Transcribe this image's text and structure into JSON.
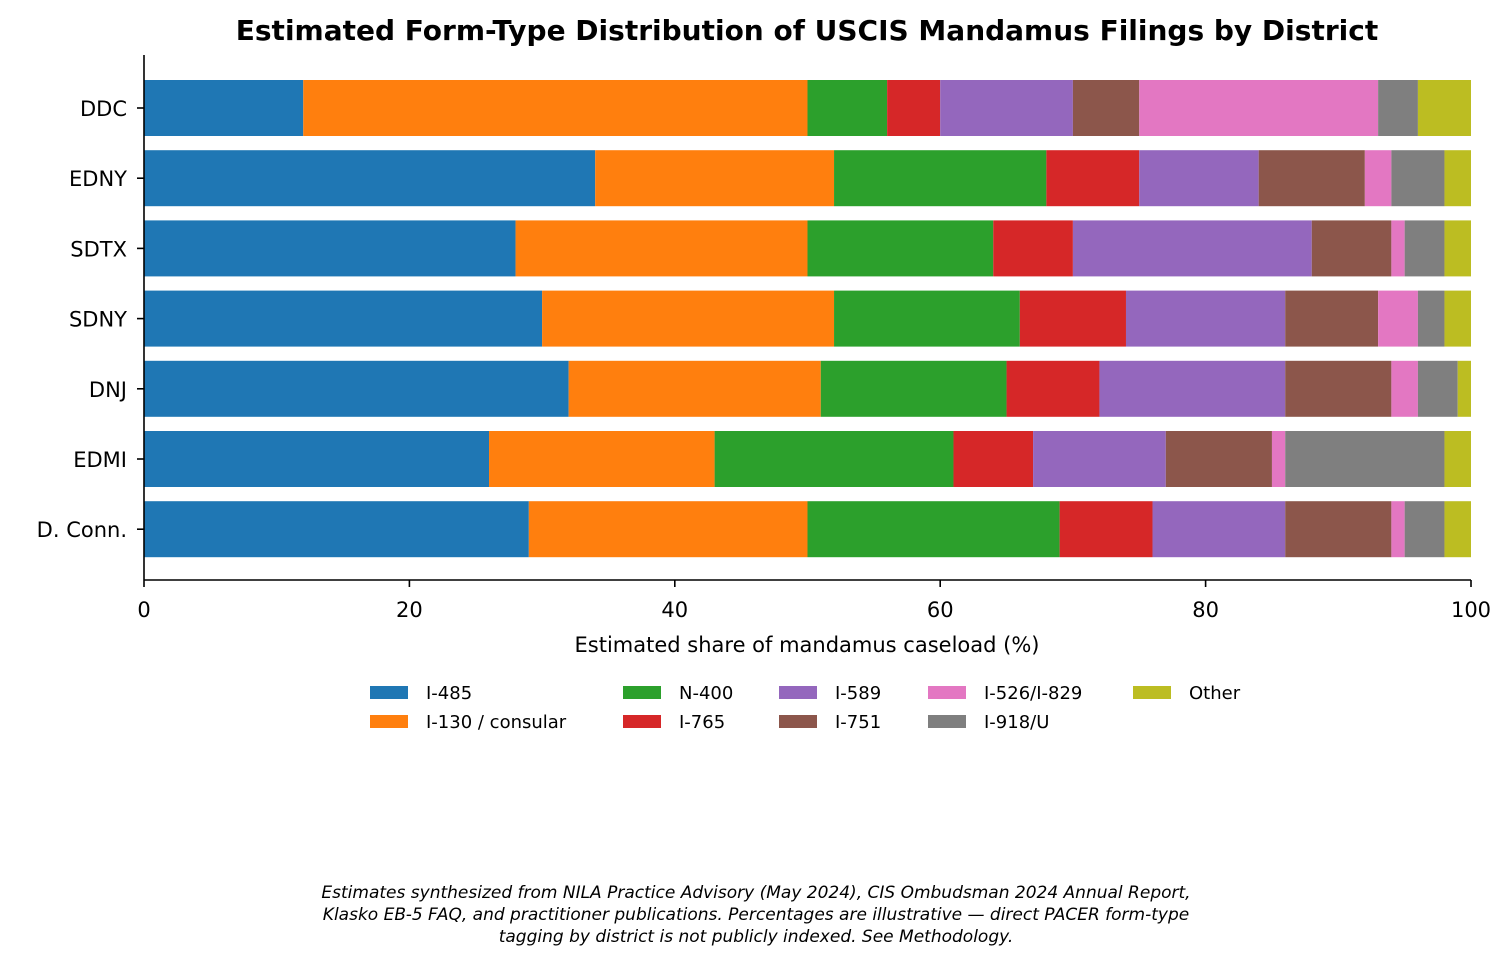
{
  "chart_data": {
    "type": "bar",
    "orientation": "horizontal",
    "stacked": true,
    "title": "Estimated Form-Type Distribution of USCIS Mandamus Filings by District",
    "xlabel": "Estimated share of mandamus caseload (%)",
    "ylabel": "",
    "xlim": [
      0,
      100
    ],
    "xticks": [
      0,
      20,
      40,
      60,
      80,
      100
    ],
    "categories": [
      "DDC",
      "EDNY",
      "SDTX",
      "SDNY",
      "DNJ",
      "EDMI",
      "D. Conn."
    ],
    "legend_position": "bottom",
    "grid": false,
    "series": [
      {
        "name": "I-485",
        "color": "#1f77b4",
        "values": [
          12,
          34,
          28,
          30,
          32,
          26,
          29
        ]
      },
      {
        "name": "I-130 / consular",
        "color": "#ff7f0e",
        "values": [
          38,
          18,
          22,
          22,
          19,
          17,
          21
        ]
      },
      {
        "name": "N-400",
        "color": "#2ca02c",
        "values": [
          6,
          16,
          14,
          14,
          14,
          18,
          19
        ]
      },
      {
        "name": "I-765",
        "color": "#d62728",
        "values": [
          4,
          7,
          6,
          8,
          7,
          6,
          7
        ]
      },
      {
        "name": "I-589",
        "color": "#9467bd",
        "values": [
          10,
          9,
          18,
          12,
          14,
          10,
          10
        ]
      },
      {
        "name": "I-751",
        "color": "#8c564b",
        "values": [
          5,
          8,
          6,
          7,
          8,
          8,
          8
        ]
      },
      {
        "name": "I-526/I-829",
        "color": "#e377c2",
        "values": [
          18,
          2,
          1,
          3,
          2,
          1,
          1
        ]
      },
      {
        "name": "I-918/U",
        "color": "#7f7f7f",
        "values": [
          3,
          4,
          3,
          2,
          3,
          12,
          3
        ]
      },
      {
        "name": "Other",
        "color": "#bcbd22",
        "values": [
          4,
          2,
          2,
          2,
          1,
          2,
          2
        ]
      }
    ]
  },
  "footnote": {
    "line1": "Estimates synthesized from NILA Practice Advisory (May 2024), CIS Ombudsman 2024 Annual Report,",
    "line2": "Klasko EB-5 FAQ, and practitioner publications. Percentages are illustrative — direct PACER form-type",
    "line3": "tagging by district is not publicly indexed. See Methodology."
  }
}
